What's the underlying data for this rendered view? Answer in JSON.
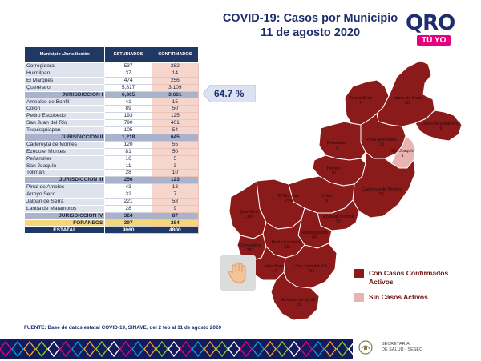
{
  "header": {
    "title_line1": "COVID-19: Casos por Municipio",
    "title_line2": "11 de agosto 2020"
  },
  "logo": {
    "text": "QRO",
    "tag": "TÚ YO",
    "brand_color": "#e6007e"
  },
  "table": {
    "headers": [
      "Municipio /Jurisdicción",
      "ESTUDIADOS",
      "CONFIRMADOS"
    ],
    "rows": [
      {
        "kind": "mun",
        "name": "Corregidora",
        "est": "537",
        "conf": "282"
      },
      {
        "kind": "mun",
        "name": "Huimilpan",
        "est": "37",
        "conf": "14"
      },
      {
        "kind": "mun",
        "name": "El Marqués",
        "est": "474",
        "conf": "256"
      },
      {
        "kind": "mun",
        "name": "Querétaro",
        "est": "5,817",
        "conf": "3,109"
      },
      {
        "kind": "sub",
        "name": "JURISDICCIÓN I",
        "est": "6,865",
        "conf": "3,661"
      },
      {
        "kind": "mun",
        "name": "Amealco de Bonfil",
        "est": "41",
        "conf": "15"
      },
      {
        "kind": "mun",
        "name": "Colón",
        "est": "89",
        "conf": "50"
      },
      {
        "kind": "mun",
        "name": "Pedro Escobedo",
        "est": "193",
        "conf": "125"
      },
      {
        "kind": "mun",
        "name": "San Juan del Río",
        "est": "790",
        "conf": "401"
      },
      {
        "kind": "mun",
        "name": "Tequisquiapan",
        "est": "105",
        "conf": "54"
      },
      {
        "kind": "sub",
        "name": "JURISDICCIÓN II",
        "est": "1,218",
        "conf": "645"
      },
      {
        "kind": "mun",
        "name": "Cadereyta de Montes",
        "est": "120",
        "conf": "55"
      },
      {
        "kind": "mun",
        "name": "Ezequiel Montes",
        "est": "81",
        "conf": "50"
      },
      {
        "kind": "mun",
        "name": "Peñamiller",
        "est": "16",
        "conf": "5"
      },
      {
        "kind": "mun",
        "name": "San Joaquín",
        "est": "11",
        "conf": "3"
      },
      {
        "kind": "mun",
        "name": "Tolimán",
        "est": "28",
        "conf": "10"
      },
      {
        "kind": "sub",
        "name": "JURISDICCIÓN III",
        "est": "256",
        "conf": "123"
      },
      {
        "kind": "mun",
        "name": "Pinal de Amoles",
        "est": "43",
        "conf": "13"
      },
      {
        "kind": "mun",
        "name": "Arroyo Seco",
        "est": "32",
        "conf": "7"
      },
      {
        "kind": "mun",
        "name": "Jalpan de Serra",
        "est": "221",
        "conf": "58"
      },
      {
        "kind": "mun",
        "name": "Landa de Matamoros",
        "est": "28",
        "conf": "9"
      },
      {
        "kind": "sub",
        "name": "JURISDICCIÓN IV",
        "est": "324",
        "conf": "87"
      },
      {
        "kind": "for",
        "name": "FORÁNEOS",
        "est": "397",
        "conf": "284"
      },
      {
        "kind": "tot",
        "name": "ESTATAL",
        "est": "9060",
        "conf": "4800"
      }
    ]
  },
  "callout": {
    "value": "64.7 %"
  },
  "map": {
    "dark_color": "#8b1a1a",
    "light_color": "#e8b3b3",
    "labels": [
      {
        "name": "Arroyo Seco",
        "value": "7"
      },
      {
        "name": "Jalpan de Serra",
        "value": "58"
      },
      {
        "name": "Landa de Matamoros",
        "value": "9"
      },
      {
        "name": "Peñamiller",
        "value": "5"
      },
      {
        "name": "Pinal de Amoles",
        "value": "13"
      },
      {
        "name": "San Joaquín",
        "value": "3"
      },
      {
        "name": "Tolimán",
        "value": "10"
      },
      {
        "name": "El Marqués",
        "value": "256"
      },
      {
        "name": "Colón",
        "value": "50"
      },
      {
        "name": "Cadereyta de Montes",
        "value": "55"
      },
      {
        "name": "Querétaro",
        "value": "3,109"
      },
      {
        "name": "Ezequiel Montes",
        "value": "50"
      },
      {
        "name": "Tequisquiapan",
        "value": "54"
      },
      {
        "name": "Corregidora",
        "value": "282"
      },
      {
        "name": "Pedro Escobedo",
        "value": "125"
      },
      {
        "name": "Huimilpan",
        "value": "14"
      },
      {
        "name": "San Juan del Río",
        "value": "401"
      },
      {
        "name": "Amealco de Bonfil",
        "value": "15"
      }
    ]
  },
  "legend": {
    "confirmed_label": "Con Casos Confirmados Activos",
    "none_label": "Sin Casos Activos"
  },
  "source": "FUENTE: Base de datos estatal COVID-19, SINAVE, del 2 feb al 11 de agosto 2020",
  "footer": {
    "seal_text": "QUERÉTARO",
    "secretaria_line1": "SECRETARÍA",
    "secretaria_line2": "DE SALUD - SESEQ"
  }
}
